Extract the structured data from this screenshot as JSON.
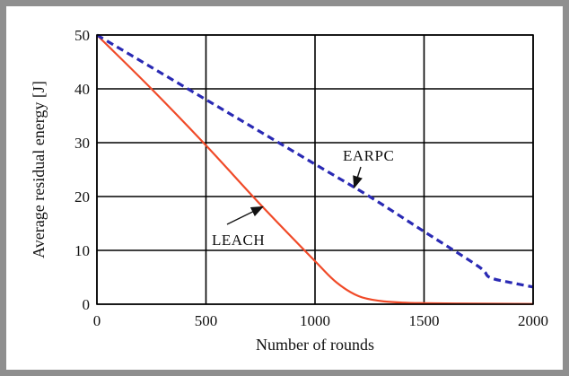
{
  "chart_data": {
    "type": "line",
    "xlabel": "Number of rounds",
    "ylabel": "Average residual energy [J]",
    "xlim": [
      0,
      2000
    ],
    "ylim": [
      0,
      50
    ],
    "xticks": [
      0,
      500,
      1000,
      1500,
      2000
    ],
    "yticks": [
      0,
      10,
      20,
      30,
      40,
      50
    ],
    "grid": true,
    "series": [
      {
        "name": "LEACH",
        "color": "#f04a28",
        "style": "solid",
        "x": [
          0,
          250,
          500,
          750,
          1000,
          1100,
          1200,
          1300,
          1400,
          1500,
          1750,
          2000
        ],
        "y": [
          50,
          40,
          29.5,
          18.5,
          8,
          4,
          1.5,
          0.6,
          0.3,
          0.2,
          0.1,
          0.05
        ]
      },
      {
        "name": "EARPC",
        "color": "#2a2ab4",
        "style": "dashed",
        "x": [
          0,
          250,
          500,
          750,
          1000,
          1250,
          1500,
          1750,
          1800,
          1900,
          2000
        ],
        "y": [
          50,
          44,
          38,
          32,
          26,
          20,
          13.5,
          7,
          5,
          4,
          3.2
        ]
      }
    ],
    "annotations": [
      {
        "text": "LEACH",
        "target_series": "LEACH",
        "target_x": 760
      },
      {
        "text": "EARPC",
        "target_series": "EARPC",
        "target_x": 1180
      }
    ]
  }
}
